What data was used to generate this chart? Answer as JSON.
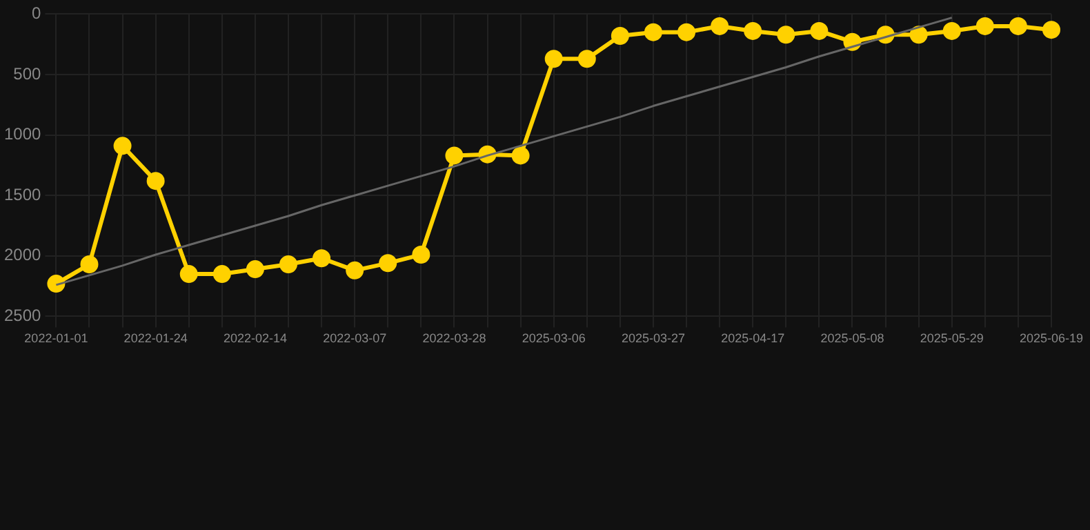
{
  "chart_data": {
    "type": "line",
    "categories": [
      "2022-01-01",
      null,
      null,
      "2022-01-24",
      null,
      null,
      "2022-02-14",
      null,
      null,
      "2022-03-07",
      null,
      null,
      "2022-03-28",
      null,
      null,
      "2025-03-06",
      null,
      null,
      "2025-03-27",
      null,
      null,
      "2025-04-17",
      null,
      null,
      "2025-05-08",
      null,
      null,
      "2025-05-29",
      null,
      null,
      "2025-06-19"
    ],
    "series": [
      {
        "color": "#ffd100",
        "marker": "circle",
        "values": [
          2230,
          2070,
          1090,
          1380,
          2150,
          2150,
          2110,
          2070,
          2020,
          2120,
          2060,
          1990,
          1170,
          1160,
          1170,
          370,
          370,
          180,
          150,
          150,
          100,
          140,
          170,
          140,
          230,
          170,
          170,
          140,
          100,
          100,
          130
        ]
      },
      {
        "color": "#666666",
        "marker": "none",
        "values": [
          2240,
          2160,
          2080,
          1990,
          1910,
          1830,
          1750,
          1670,
          1580,
          1500,
          1420,
          1340,
          1260,
          1170,
          1090,
          1010,
          930,
          850,
          760,
          680,
          600,
          520,
          440,
          350,
          270,
          190,
          110,
          30,
          null,
          null,
          null
        ]
      }
    ],
    "ylim": [
      2500,
      0
    ],
    "yticks": [
      0,
      500,
      1000,
      1500,
      2000,
      2500
    ],
    "grid": true
  }
}
